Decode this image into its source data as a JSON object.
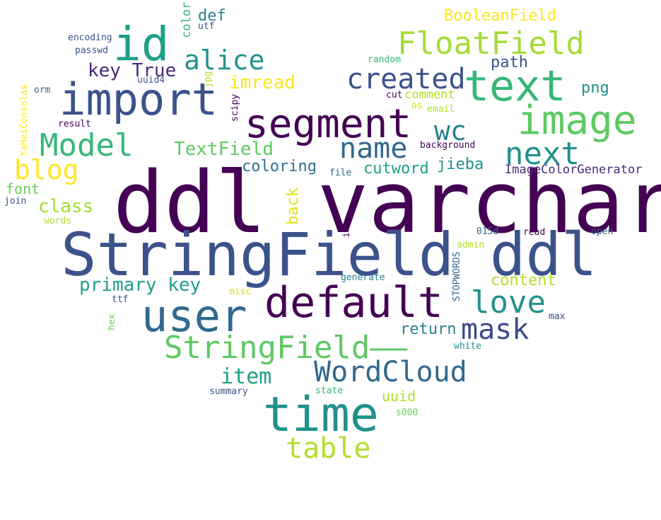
{
  "words": [
    {
      "text": "ddl varchar",
      "color": "#440154"
    },
    {
      "text": "StringField ddl",
      "color": "#3b528b"
    },
    {
      "text": "time",
      "color": "#21918c"
    },
    {
      "text": "default",
      "color": "#440154"
    },
    {
      "text": "user",
      "color": "#31688e"
    },
    {
      "text": "import",
      "color": "#3b528b"
    },
    {
      "text": "segment",
      "color": "#440154"
    },
    {
      "text": "image",
      "color": "#5ec962"
    },
    {
      "text": "text",
      "color": "#35b779"
    },
    {
      "text": "id",
      "color": "#1f9e89"
    },
    {
      "text": "FloatField",
      "color": "#a5db36"
    },
    {
      "text": "StringField——",
      "color": "#5ec962"
    },
    {
      "text": "Model",
      "color": "#35b779"
    },
    {
      "text": "love",
      "color": "#21918c"
    },
    {
      "text": "table",
      "color": "#b5de2b"
    },
    {
      "text": "WordCloud",
      "color": "#31688e"
    },
    {
      "text": "mask",
      "color": "#3e4a89"
    },
    {
      "text": "next",
      "color": "#21918c"
    },
    {
      "text": "name",
      "color": "#31688e"
    },
    {
      "text": "created",
      "color": "#3b528b"
    },
    {
      "text": "alice",
      "color": "#21918c"
    },
    {
      "text": "blog",
      "color": "#fde725"
    },
    {
      "text": "wc",
      "color": "#26828e"
    },
    {
      "text": "primary key",
      "color": "#1f9e89"
    },
    {
      "text": "key True",
      "color": "#482878"
    },
    {
      "text": "item",
      "color": "#1f9e89"
    },
    {
      "text": "TextField",
      "color": "#5ec962"
    },
    {
      "text": "class",
      "color": "#a5db36"
    },
    {
      "text": "imread",
      "color": "#fde725"
    },
    {
      "text": "return",
      "color": "#26828e"
    },
    {
      "text": "content",
      "color": "#b5de2b"
    },
    {
      "text": "coloring",
      "color": "#2c728e"
    },
    {
      "text": "cutword",
      "color": "#1f9e89"
    },
    {
      "text": "jieba",
      "color": "#21918c"
    },
    {
      "text": "path",
      "color": "#3b528b"
    },
    {
      "text": "def",
      "color": "#26828e"
    },
    {
      "text": "BooleanField",
      "color": "#fde725"
    },
    {
      "text": "font",
      "color": "#6ece58"
    },
    {
      "text": "uuid",
      "color": "#b5de2b"
    },
    {
      "text": "png",
      "color": "#21918c"
    },
    {
      "text": "ImageColorGenerator",
      "color": "#482878"
    },
    {
      "text": "back",
      "color": "#dfe318"
    },
    {
      "text": "color",
      "color": "#35b779"
    },
    {
      "text": "comment",
      "color": "#b5de2b"
    },
    {
      "text": "encoding",
      "color": "#3b528b"
    },
    {
      "text": "passwd",
      "color": "#3b528b"
    },
    {
      "text": "uuid4",
      "color": "#3b528b"
    },
    {
      "text": "utf",
      "color": "#3b528b"
    },
    {
      "text": "random",
      "color": "#35b779"
    },
    {
      "text": "cut",
      "color": "#440154"
    },
    {
      "text": "os",
      "color": "#dfe318"
    },
    {
      "text": "email",
      "color": "#b5de2b"
    },
    {
      "text": "jpg",
      "color": "#b5de2b"
    },
    {
      "text": "scipy",
      "color": "#440154"
    },
    {
      "text": "orm",
      "color": "#31688e"
    },
    {
      "text": "result",
      "color": "#440154"
    },
    {
      "text": "YaHeiConsolas",
      "color": "#fde725"
    },
    {
      "text": "background",
      "color": "#440154"
    },
    {
      "text": "file",
      "color": "#31688e"
    },
    {
      "text": "join",
      "color": "#3b528b"
    },
    {
      "text": "words",
      "color": "#b5de2b"
    },
    {
      "text": "int",
      "color": "#440154"
    },
    {
      "text": "015d",
      "color": "#31688e"
    },
    {
      "text": "read",
      "color": "#440154"
    },
    {
      "text": "open",
      "color": "#31688e"
    },
    {
      "text": "admin",
      "color": "#b5de2b"
    },
    {
      "text": "STOPWORDS",
      "color": "#31688e"
    },
    {
      "text": "generate",
      "color": "#26828e"
    },
    {
      "text": "misc",
      "color": "#dfe318"
    },
    {
      "text": "ttf",
      "color": "#3b528b"
    },
    {
      "text": "hex",
      "color": "#6ece58"
    },
    {
      "text": "max",
      "color": "#3b528b"
    },
    {
      "text": "white",
      "color": "#21918c"
    },
    {
      "text": "summary",
      "color": "#3b528b"
    },
    {
      "text": "state",
      "color": "#35b779"
    },
    {
      "text": "s000",
      "color": "#6ece58"
    }
  ]
}
